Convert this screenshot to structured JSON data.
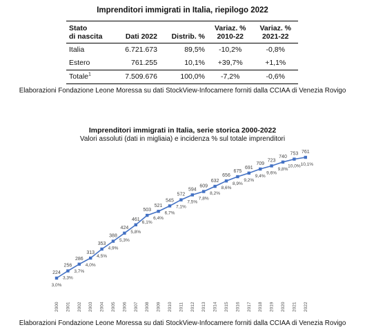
{
  "table": {
    "title": "Imprenditori immigrati in Italia, riepilogo 2022",
    "headers": {
      "stato_line1": "Stato",
      "stato_line2": "di nascita",
      "dati": "Dati 2022",
      "distrib": "Distrib. %",
      "var1_line1": "Variaz. %",
      "var1_line2": "2010-22",
      "var2_line1": "Variaz. %",
      "var2_line2": "2021-22"
    },
    "rows": [
      {
        "stato": "Italia",
        "dati": "6.721.673",
        "distrib": "89,5%",
        "var1": "-10,2%",
        "var2": "-0,8%"
      },
      {
        "stato": "Estero",
        "dati": "761.255",
        "distrib": "10,1%",
        "var1": "+39,7%",
        "var2": "+1,1%"
      }
    ],
    "total": {
      "stato": "Totale",
      "sup": "1",
      "dati": "7.509.676",
      "distrib": "100,0%",
      "var1": "-7,2%",
      "var2": "-0,6%"
    }
  },
  "source_text": "Elaborazioni Fondazione Leone Moressa su dati StockView-Infocamere forniti dalla CCIAA di Venezia Rovigo",
  "chart_data": {
    "type": "line",
    "title": "Imprenditori immigrati in Italia, serie storica 2000-2022",
    "subtitle": "Valori assoluti (dati in migliaia) e incidenza % sul totale imprenditori",
    "x": [
      "2000",
      "2001",
      "2002",
      "2003",
      "2004",
      "2005",
      "2006",
      "2007",
      "2008",
      "2009",
      "2010",
      "2011",
      "2012",
      "2013",
      "2014",
      "2015",
      "2016",
      "2017",
      "2018",
      "2019",
      "2020",
      "2021",
      "2022"
    ],
    "values": [
      224,
      256,
      286,
      313,
      353,
      388,
      424,
      461,
      503,
      521,
      545,
      572,
      594,
      609,
      632,
      656,
      675,
      691,
      709,
      723,
      740,
      753,
      761
    ],
    "incidenza": [
      "3,0%",
      "3,3%",
      "3,7%",
      "4,0%",
      "4,5%",
      "4,9%",
      "5,3%",
      "5,8%",
      "6,1%",
      "6,4%",
      "6,7%",
      "7,1%",
      "7,5%",
      "7,8%",
      "8,2%",
      "8,6%",
      "8,9%",
      "9,2%",
      "9,4%",
      "9,6%",
      "9,8%",
      "10,0%",
      "10,1%"
    ],
    "line_color": "#4472C4",
    "grid": false,
    "legend": "none"
  }
}
